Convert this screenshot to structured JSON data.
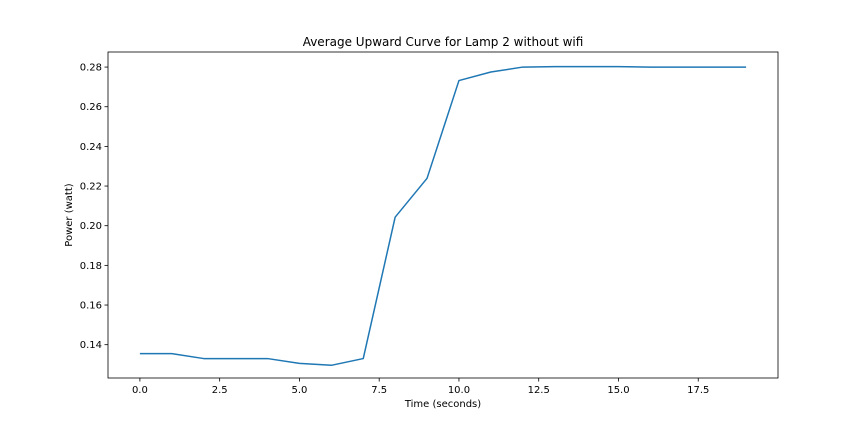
{
  "chart_data": {
    "type": "line",
    "title": "Average Upward Curve for Lamp 2 without wifi",
    "xlabel": "Time (seconds)",
    "ylabel": "Power (watt)",
    "xlim": [
      -1.0,
      20.0
    ],
    "ylim": [
      0.1232,
      0.2876
    ],
    "x_ticks": [
      0.0,
      2.5,
      5.0,
      7.5,
      10.0,
      12.5,
      15.0,
      17.5
    ],
    "x_tick_labels": [
      "0.0",
      "2.5",
      "5.0",
      "7.5",
      "10.0",
      "12.5",
      "15.0",
      "17.5"
    ],
    "y_ticks": [
      0.14,
      0.16,
      0.18,
      0.2,
      0.22,
      0.24,
      0.26,
      0.28
    ],
    "y_tick_labels": [
      "0.14",
      "0.16",
      "0.18",
      "0.20",
      "0.22",
      "0.24",
      "0.26",
      "0.28"
    ],
    "grid": false,
    "series": [
      {
        "color": "#1f77b4",
        "x": [
          0,
          1,
          2,
          3,
          4,
          5,
          6,
          7,
          8,
          9,
          10,
          11,
          12,
          13,
          14,
          15,
          16,
          17,
          18,
          19
        ],
        "y": [
          0.1355,
          0.1355,
          0.133,
          0.133,
          0.133,
          0.1306,
          0.1296,
          0.133,
          0.2043,
          0.2239,
          0.2732,
          0.2775,
          0.28,
          0.2802,
          0.2802,
          0.2802,
          0.28,
          0.28,
          0.28,
          0.28
        ]
      }
    ]
  }
}
